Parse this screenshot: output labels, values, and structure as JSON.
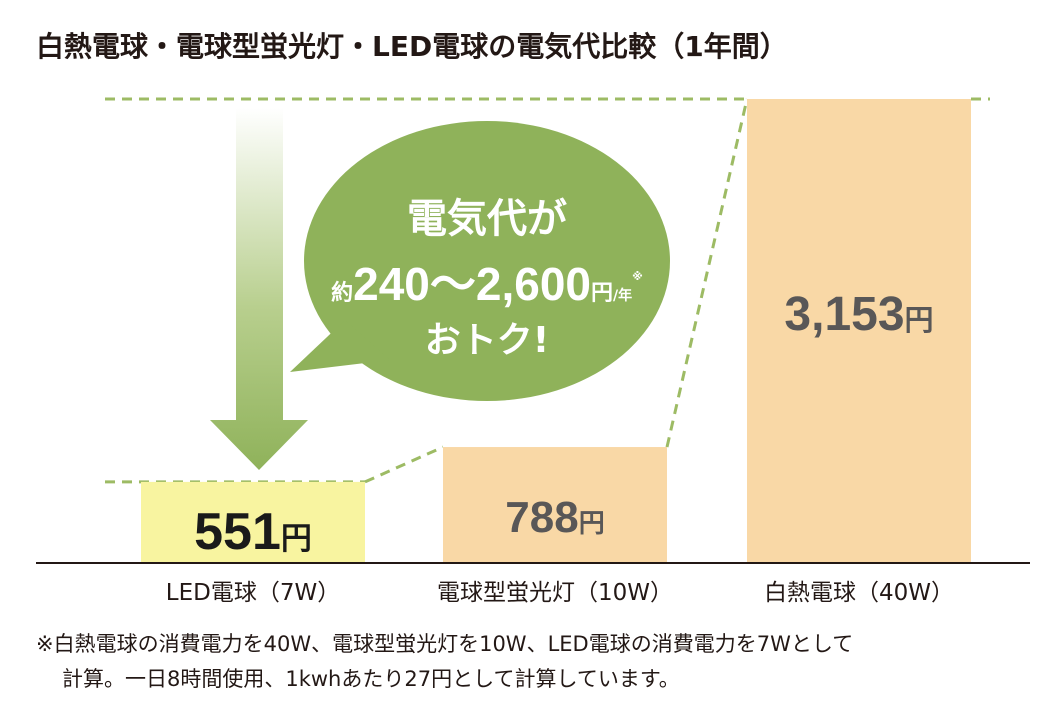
{
  "chart_data": {
    "type": "bar",
    "title": "白熱電球・電球型蛍光灯・LED電球の電気代比較（1年間）",
    "categories": [
      "LED電球（7W）",
      "電球型蛍光灯（10W）",
      "白熱電球（40W）"
    ],
    "values": [
      551,
      788,
      3153
    ],
    "value_labels": [
      "551",
      "788",
      "3,153"
    ],
    "value_unit": "円",
    "ylim": [
      0,
      3153
    ],
    "grid": false,
    "legend": "none",
    "colors": {
      "led": "#f8f4a0",
      "fluorescent": "#f9d8a6",
      "incandescent": "#f9d8a6",
      "accent": "#8fb25a",
      "dash": "#9dbb64",
      "bubble": "#8fb25a",
      "value_dark": "#1a1a1a",
      "value_gray": "#595757"
    },
    "callout": {
      "line1": "電気代が",
      "prefix": "約",
      "amount": "240〜2,600",
      "unit": "円",
      "per": "/年",
      "mark": "※",
      "line3": "おトク!"
    }
  },
  "footnote": {
    "line1": "※白熱電球の消費電力を40W、電球型蛍光灯を10W、LED電球の消費電力を7Wとして",
    "line2": "計算。一日8時間使用、1kwhあたり27円として計算しています。"
  }
}
